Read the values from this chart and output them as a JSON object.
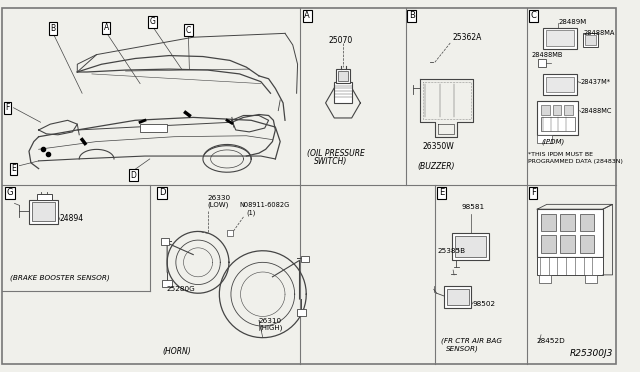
{
  "bg_color": "#f0f0eb",
  "line_color": "#444444",
  "border_color": "#777777",
  "part_A": "25070",
  "part_B1": "25362A",
  "part_B2": "26350W",
  "part_C1": "28489M",
  "part_C2": "28488MA",
  "part_C3": "28488MB",
  "part_C4": "28437M*",
  "part_C5": "28488MC",
  "part_D1": "26330",
  "part_D1b": "(LOW)",
  "part_D2": "N08911-6082G",
  "part_D2b": "(1)",
  "part_D3": "25280G",
  "part_D4": "26310",
  "part_D4b": "(HIGH)",
  "part_E1": "98581",
  "part_E2": "25385B",
  "part_E3": "98502",
  "part_F": "28452D",
  "part_G": "24894",
  "label_A": "(OIL PRESSURE",
  "label_A2": "SWITCH)",
  "label_B": "(BUZZER)",
  "label_C_ipdm": "(IPDM)",
  "label_C_note1": "*THIS IPDM MUST BE",
  "label_C_note2": "PROGRAMMED DATA (28483N)",
  "label_D": "(HORN)",
  "label_E1": "(FR CTR AIR BAG",
  "label_E2": "SENSOR)",
  "label_G": "(BRAKE BOOSTER SENSOR)",
  "ref": "R25300J3",
  "divH": 185,
  "divV1": 310,
  "divV2": 420,
  "divV3": 450,
  "divV4": 545
}
